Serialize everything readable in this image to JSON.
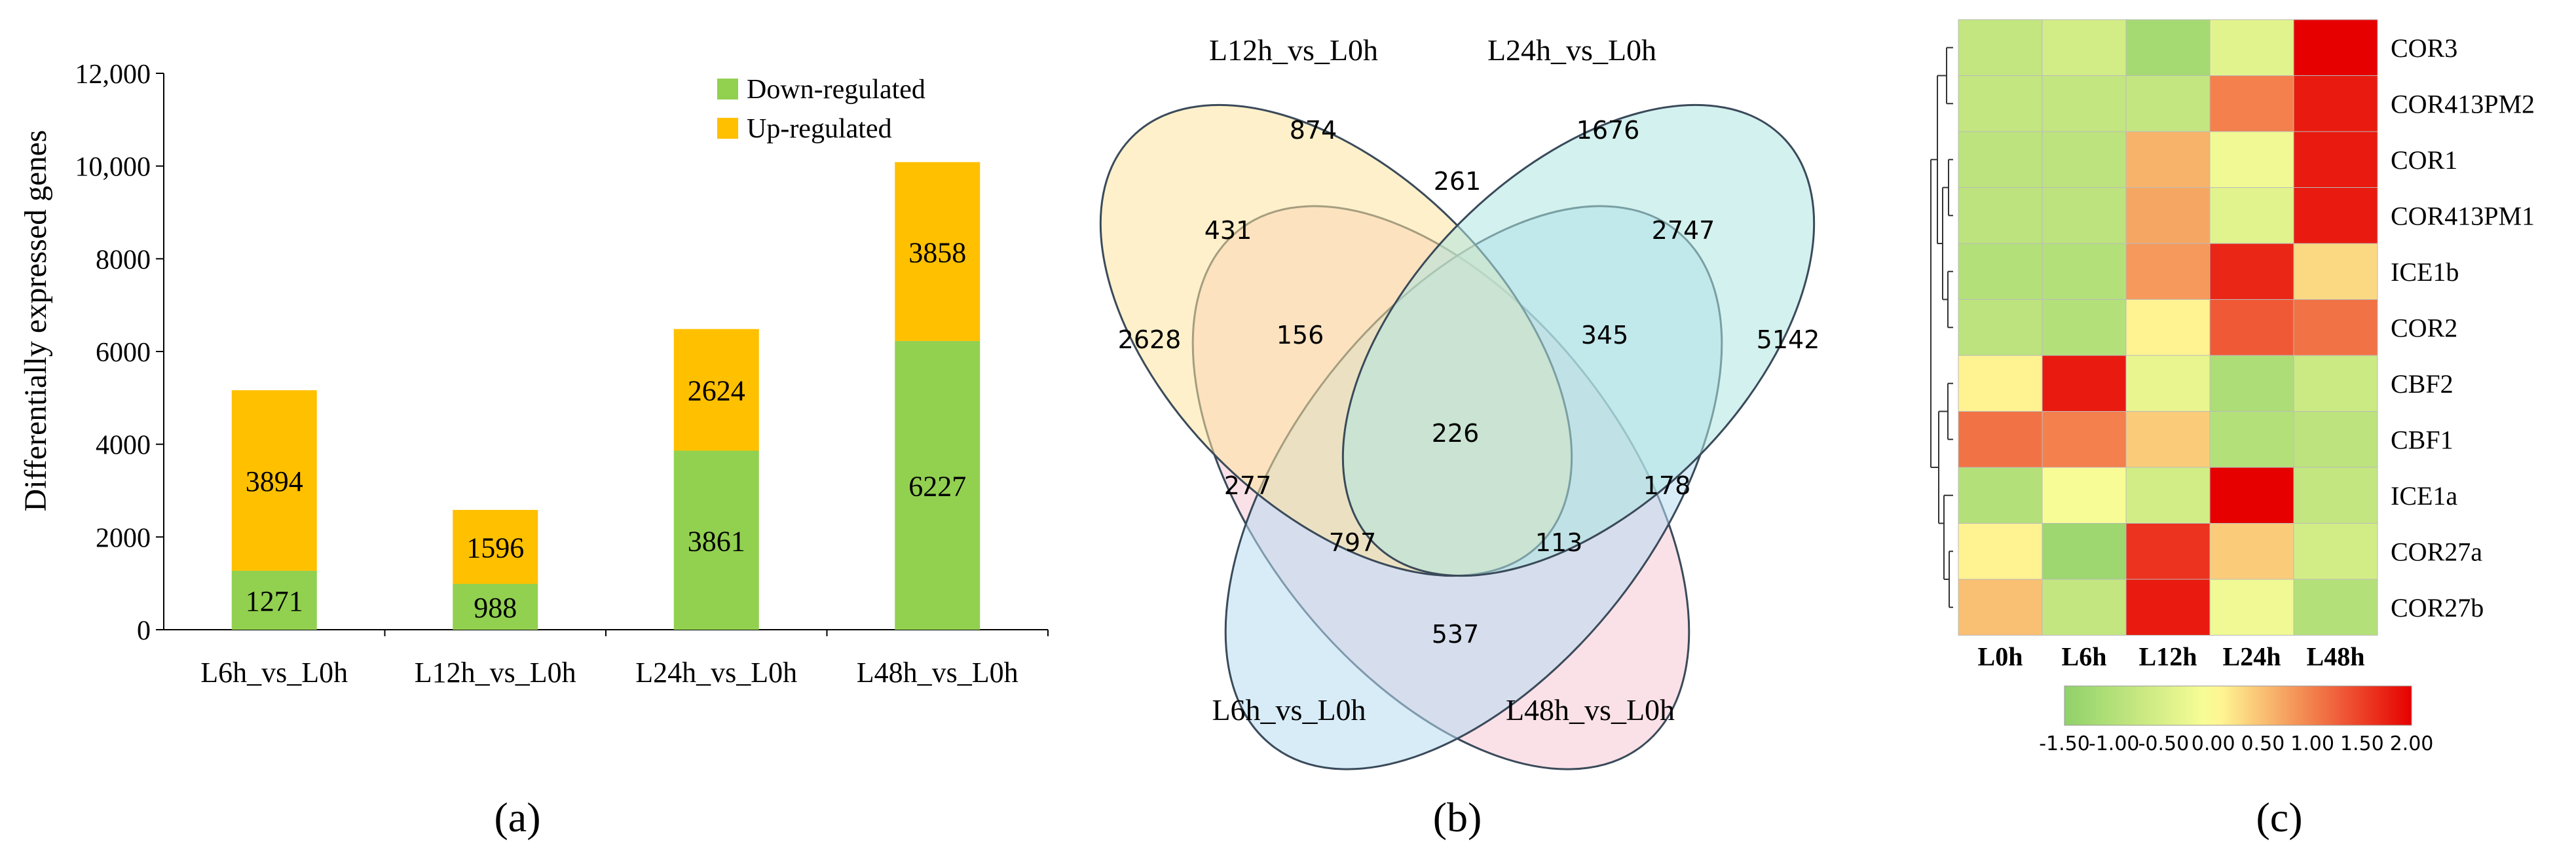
{
  "chart_data": [
    {
      "panel": "(a)",
      "type": "bar",
      "stacked": true,
      "ylabel": "Differentially expressed genes",
      "ylim": [
        0,
        12000
      ],
      "yticks": [
        "0",
        "2000",
        "4000",
        "6000",
        "8000",
        "10,000",
        "12,000"
      ],
      "legend_position": "top-right",
      "categories": [
        "L6h_vs_L0h",
        "L12h_vs_L0h",
        "L24h_vs_L0h",
        "L48h_vs_L0h"
      ],
      "series": [
        {
          "name": "Down-regulated",
          "color": "#92d050",
          "values": [
            1271,
            988,
            3861,
            6227
          ],
          "labels": [
            "1271",
            "988",
            "3861",
            "6227"
          ]
        },
        {
          "name": "Up-regulated",
          "color": "#ffc000",
          "values": [
            3894,
            1596,
            2624,
            3858
          ],
          "labels": [
            "3894",
            "1596",
            "2624",
            "3858"
          ]
        }
      ]
    },
    {
      "panel": "(b)",
      "type": "venn",
      "sets": [
        {
          "name": "L12h_vs_L0h",
          "color": "#fde39e"
        },
        {
          "name": "L24h_vs_L0h",
          "color": "#aee6e0"
        },
        {
          "name": "L6h_vs_L0h",
          "color": "#f5c9d4"
        },
        {
          "name": "L48h_vs_L0h",
          "color": "#b8dcf2"
        }
      ],
      "regions": [
        "874",
        "1676",
        "431",
        "261",
        "2747",
        "2628",
        "156",
        "345",
        "5142",
        "226",
        "277",
        "178",
        "797",
        "113",
        "537"
      ]
    },
    {
      "panel": "(c)",
      "type": "heatmap",
      "x": [
        "L0h",
        "L6h",
        "L12h",
        "L24h",
        "L48h"
      ],
      "y": [
        "COR3",
        "COR413PM2",
        "COR1",
        "COR413PM1",
        "ICE1b",
        "COR2",
        "CBF2",
        "CBF1",
        "ICE1a",
        "COR27a",
        "COR27b"
      ],
      "z": [
        [
          -0.8,
          -0.6,
          -1.2,
          -0.4,
          2.0
        ],
        [
          -0.8,
          -0.8,
          -0.8,
          1.0,
          1.8
        ],
        [
          -0.9,
          -0.9,
          0.6,
          -0.2,
          1.8
        ],
        [
          -0.9,
          -0.9,
          0.7,
          -0.4,
          1.8
        ],
        [
          -1.0,
          -1.0,
          0.8,
          1.7,
          0.3
        ],
        [
          -0.9,
          -1.0,
          0.1,
          1.3,
          1.1
        ],
        [
          0.1,
          1.8,
          -0.3,
          -1.1,
          -0.7
        ],
        [
          1.1,
          1.0,
          0.4,
          -1.0,
          -0.9
        ],
        [
          -1.0,
          -0.1,
          -0.6,
          2.0,
          -0.8
        ],
        [
          0.1,
          -1.3,
          1.6,
          0.4,
          -0.6
        ],
        [
          0.5,
          -0.8,
          1.8,
          -0.2,
          -1.0
        ]
      ],
      "colorscale": {
        "min": -1.5,
        "max": 2.0,
        "colors": [
          "#8fd16a",
          "#ffff99",
          "#e60000"
        ]
      },
      "colorbar_ticks": [
        "-1.50",
        "-1.00",
        "-0.50",
        "0.00",
        "0.50",
        "1.00",
        "1.50",
        "2.00"
      ]
    }
  ],
  "captions": [
    "(a)",
    "(b)",
    "(c)"
  ]
}
